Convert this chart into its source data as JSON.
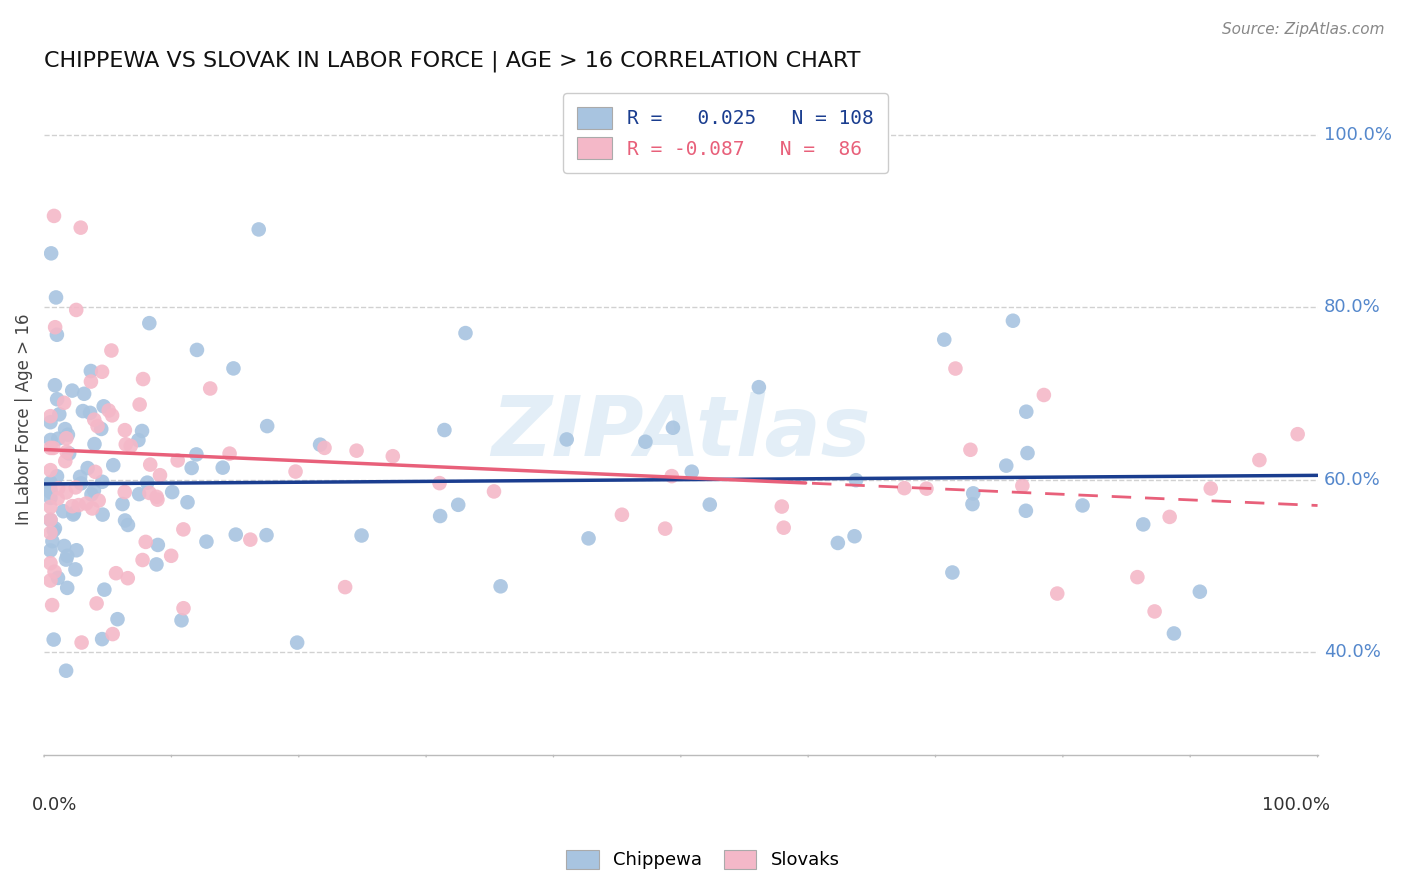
{
  "title": "CHIPPEWA VS SLOVAK IN LABOR FORCE | AGE > 16 CORRELATION CHART",
  "source": "Source: ZipAtlas.com",
  "ylabel": "In Labor Force | Age > 16",
  "ytick_labels": [
    "40.0%",
    "60.0%",
    "80.0%",
    "100.0%"
  ],
  "ytick_values": [
    0.4,
    0.6,
    0.8,
    1.0
  ],
  "chippewa_R": 0.025,
  "chippewa_N": 108,
  "slovak_R": -0.087,
  "slovak_N": 86,
  "chippewa_color": "#a8c4e0",
  "slovak_color": "#f4b8c8",
  "chippewa_line_color": "#1a3d8f",
  "slovak_line_color": "#e8607a",
  "background_color": "#ffffff",
  "grid_color": "#cccccc",
  "xlim": [
    0.0,
    1.0
  ],
  "ylim": [
    0.28,
    1.06
  ],
  "watermark_text": "ZIPAtlas",
  "watermark_color": "#c8dff0",
  "watermark_alpha": 0.5
}
